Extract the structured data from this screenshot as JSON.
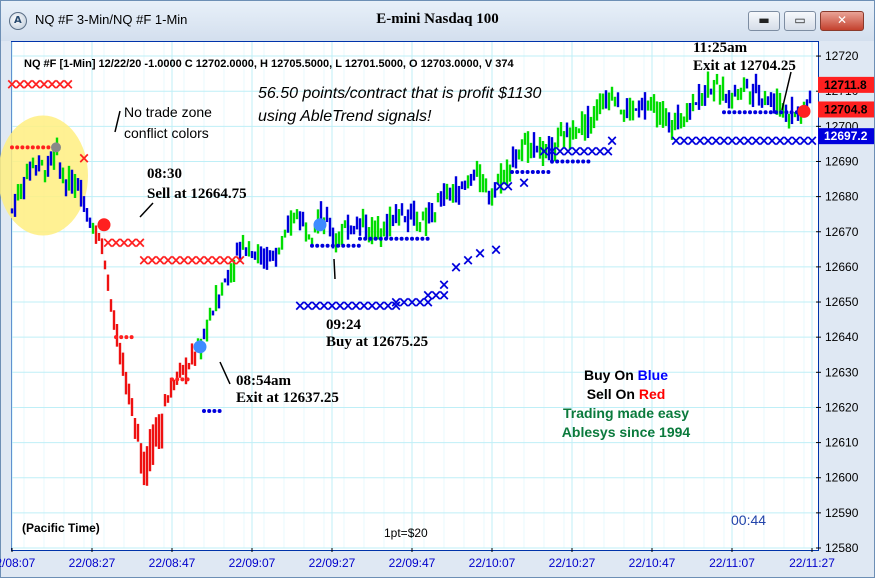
{
  "window": {
    "title": "NQ #F 3-Min/NQ #F 1-Min",
    "chart_title": "E-mini Nasdaq 100",
    "icons": [
      "app-logo-icon",
      "minimize-icon",
      "maximize-icon",
      "close-icon"
    ],
    "min_glyph": "▬",
    "max_glyph": "▭",
    "close_glyph": "✕"
  },
  "header": {
    "quote": "NQ #F [1-Min]  12/22/20  -1.0000  C  12702.0000,  H  12705.5000,  L  12701.5000,  O  12703.0000,  V  374"
  },
  "annotations": {
    "profit_line1": "56.50 points/contract that is profit $1130",
    "profit_line2": "using AbleTrend signals!",
    "no_trade_line1": "No trade zone",
    "no_trade_line2": "conflict colors",
    "sell_time": "08:30",
    "sell_text": "Sell at 12664.75",
    "exit1_time": "08:54am",
    "exit1_text": "Exit at 12637.25",
    "buy_time": "09:24",
    "buy_text": "Buy at 12675.25",
    "exit2_time": "11:25am",
    "exit2_text": "Exit at 12704.25",
    "legend_buy_prefix": "Buy On ",
    "legend_buy_color_word": "Blue",
    "legend_sell_prefix": "Sell On ",
    "legend_sell_color_word": "Red",
    "legend_line3": "Trading made easy",
    "legend_line4": "Ablesys since 1994",
    "timezone": "(Pacific Time)",
    "point_value": "1pt=$20",
    "clock": "00:44"
  },
  "colors": {
    "up": "#00dd00",
    "down": "#ee1111",
    "blue": "#0000dd",
    "red": "#ff2020",
    "grid": "#bfeff7",
    "axis_text": "#0000cc",
    "legend_blue": "#0000ff",
    "legend_red": "#ff0000",
    "legend_green": "#0a7a3c",
    "highlight": "#ffef80"
  },
  "chart_data": {
    "type": "candlestick",
    "title": "E-mini Nasdaq 100",
    "x_ticks": [
      "22/08:07",
      "22/08:27",
      "22/08:47",
      "22/09:07",
      "22/09:27",
      "22/09:47",
      "22/10:07",
      "22/10:27",
      "22/10:47",
      "22/11:07",
      "22/11:27"
    ],
    "xlim": [
      "08:07",
      "11:28"
    ],
    "ylim": [
      12580,
      12724
    ],
    "y_ticks": [
      12580,
      12590,
      12600,
      12610,
      12620,
      12630,
      12640,
      12650,
      12660,
      12670,
      12680,
      12690,
      12700,
      12710,
      12720
    ],
    "price_tags": [
      {
        "value": "12711.8",
        "color": "red"
      },
      {
        "value": "12704.8",
        "color": "red"
      },
      {
        "value": "12697.2",
        "color": "blue"
      }
    ],
    "price_series_approx": [
      {
        "time": "08:07",
        "price": 12676
      },
      {
        "time": "08:12",
        "price": 12690
      },
      {
        "time": "08:16",
        "price": 12688
      },
      {
        "time": "08:18",
        "price": 12693
      },
      {
        "time": "08:20",
        "price": 12684
      },
      {
        "time": "08:24",
        "price": 12683
      },
      {
        "time": "08:27",
        "price": 12672
      },
      {
        "time": "08:30",
        "price": 12664.75
      },
      {
        "time": "08:33",
        "price": 12640
      },
      {
        "time": "08:37",
        "price": 12620
      },
      {
        "time": "08:40",
        "price": 12605
      },
      {
        "time": "08:43",
        "price": 12615
      },
      {
        "time": "08:48",
        "price": 12628
      },
      {
        "time": "08:51",
        "price": 12632
      },
      {
        "time": "08:54",
        "price": 12637.25
      },
      {
        "time": "08:58",
        "price": 12650
      },
      {
        "time": "09:02",
        "price": 12660
      },
      {
        "time": "09:05",
        "price": 12667
      },
      {
        "time": "09:10",
        "price": 12662
      },
      {
        "time": "09:14",
        "price": 12664
      },
      {
        "time": "09:18",
        "price": 12676
      },
      {
        "time": "09:22",
        "price": 12670
      },
      {
        "time": "09:24",
        "price": 12675.25
      },
      {
        "time": "09:28",
        "price": 12668
      },
      {
        "time": "09:33",
        "price": 12673
      },
      {
        "time": "09:38",
        "price": 12670
      },
      {
        "time": "09:45",
        "price": 12676
      },
      {
        "time": "09:50",
        "price": 12672
      },
      {
        "time": "09:55",
        "price": 12680
      },
      {
        "time": "10:00",
        "price": 12682
      },
      {
        "time": "10:03",
        "price": 12688
      },
      {
        "time": "10:06",
        "price": 12680
      },
      {
        "time": "10:12",
        "price": 12690
      },
      {
        "time": "10:17",
        "price": 12696
      },
      {
        "time": "10:20",
        "price": 12692
      },
      {
        "time": "10:26",
        "price": 12698
      },
      {
        "time": "10:32",
        "price": 12702
      },
      {
        "time": "10:37",
        "price": 12710
      },
      {
        "time": "10:40",
        "price": 12704
      },
      {
        "time": "10:47",
        "price": 12706
      },
      {
        "time": "10:52",
        "price": 12700
      },
      {
        "time": "10:57",
        "price": 12706
      },
      {
        "time": "11:02",
        "price": 12712
      },
      {
        "time": "11:06",
        "price": 12708
      },
      {
        "time": "11:10",
        "price": 12712
      },
      {
        "time": "11:16",
        "price": 12708
      },
      {
        "time": "11:21",
        "price": 12704
      },
      {
        "time": "11:25",
        "price": 12704.25
      },
      {
        "time": "11:27",
        "price": 12710
      }
    ],
    "segments": [
      {
        "kind": "red-x",
        "t0": "08:07",
        "t1": "08:21",
        "price": 12712
      },
      {
        "kind": "red-x",
        "t0": "08:31",
        "t1": "08:39",
        "price": 12667
      },
      {
        "kind": "red-x",
        "t0": "08:40",
        "t1": "09:05",
        "price": 12662
      },
      {
        "kind": "blue-x",
        "t0": "09:19",
        "t1": "09:43",
        "price": 12649
      },
      {
        "kind": "blue-x",
        "t0": "09:43",
        "t1": "09:51",
        "price": 12650
      },
      {
        "kind": "blue-x",
        "t0": "09:51",
        "t1": "09:56",
        "price": 12652
      },
      {
        "kind": "blue-x",
        "t0": "10:09",
        "t1": "10:12",
        "price": 12683
      },
      {
        "kind": "blue-x",
        "t0": "10:20",
        "t1": "10:37",
        "price": 12693
      },
      {
        "kind": "blue-x",
        "t0": "10:53",
        "t1": "11:27",
        "price": 12696
      },
      {
        "kind": "red-dot",
        "t0": "08:07",
        "t1": "08:17",
        "price": 12694
      },
      {
        "kind": "red-dot",
        "t0": "08:33",
        "t1": "08:38",
        "price": 12640
      },
      {
        "kind": "red-dot",
        "t0": "08:47",
        "t1": "08:51",
        "price": 12628
      },
      {
        "kind": "blue-dot",
        "t0": "08:55",
        "t1": "09:00",
        "price": 12619
      },
      {
        "kind": "blue-dot",
        "t0": "09:22",
        "t1": "09:34",
        "price": 12666
      },
      {
        "kind": "blue-dot",
        "t0": "09:34",
        "t1": "09:52",
        "price": 12668
      },
      {
        "kind": "blue-dot",
        "t0": "10:12",
        "t1": "10:22",
        "price": 12687
      },
      {
        "kind": "blue-dot",
        "t0": "10:22",
        "t1": "10:32",
        "price": 12690
      },
      {
        "kind": "blue-dot",
        "t0": "11:05",
        "t1": "11:24",
        "price": 12704
      }
    ],
    "signals": [
      {
        "label": "Sell",
        "time": "08:30",
        "price": 12672,
        "color": "red"
      },
      {
        "label": "Exit",
        "time": "08:54",
        "price": 12637.25,
        "color": "blue"
      },
      {
        "label": "Buy",
        "time": "09:24",
        "price": 12672,
        "color": "blue"
      },
      {
        "label": "Exit",
        "time": "11:25",
        "price": 12704.25,
        "color": "red"
      }
    ]
  }
}
